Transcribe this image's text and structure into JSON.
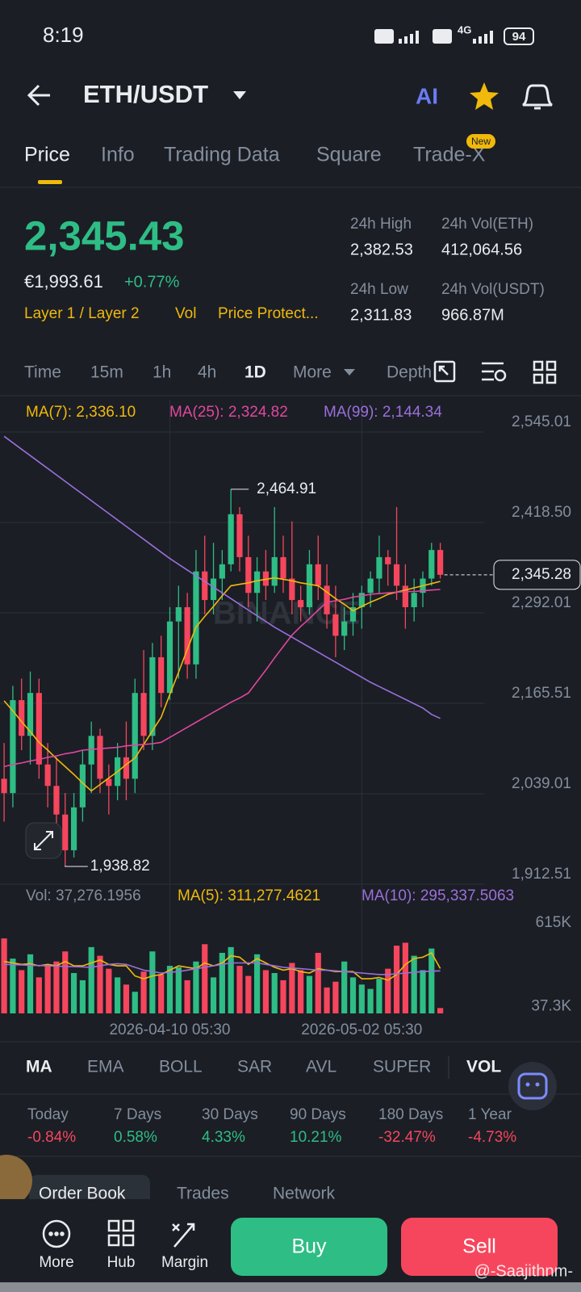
{
  "status_bar": {
    "time": "8:19",
    "network": "4G",
    "battery": "94"
  },
  "header": {
    "pair": "ETH/USDT",
    "ai": "AI"
  },
  "tabs": {
    "items": [
      "Price",
      "Info",
      "Trading Data",
      "Square",
      "Trade-X"
    ],
    "badge": "New"
  },
  "price": {
    "last": "2,345.43",
    "fiat": "€1,993.61",
    "change": "+0.77%",
    "tags": [
      "Layer 1 / Layer 2",
      "Vol",
      "Price Protect..."
    ]
  },
  "stats": [
    {
      "label": "24h High",
      "value": "2,382.53"
    },
    {
      "label": "24h Vol(ETH)",
      "value": "412,064.56"
    },
    {
      "label": "24h Low",
      "value": "2,311.83"
    },
    {
      "label": "24h Vol(USDT)",
      "value": "966.87M"
    }
  ],
  "intervals": [
    "Time",
    "15m",
    "1h",
    "4h",
    "1D",
    "More",
    "Depth"
  ],
  "chart_data": {
    "type": "candlestick",
    "categories": [
      null,
      null,
      null,
      null,
      null,
      null,
      null,
      null,
      null,
      null,
      null,
      null,
      null,
      null,
      null,
      null,
      null,
      null,
      null,
      "2026-04-10 05:30",
      null,
      null,
      null,
      null,
      null,
      null,
      null,
      null,
      null,
      null,
      null,
      null,
      null,
      null,
      null,
      null,
      null,
      null,
      null,
      null,
      null,
      "2026-05-02 05:30",
      null,
      null,
      null,
      null,
      null,
      null,
      null,
      null,
      null
    ],
    "open": [
      2060,
      2040,
      2170,
      2120,
      2180,
      2080,
      2050,
      2010,
      1960,
      2020,
      2080,
      2120,
      2060,
      2050,
      2090,
      2060,
      2180,
      2120,
      2230,
      2180,
      2280,
      2300,
      2220,
      2350,
      2310,
      2340,
      2360,
      2430,
      2370,
      2320,
      2350,
      2330,
      2370,
      2340,
      2310,
      2300,
      2360,
      2330,
      2290,
      2260,
      2280,
      2300,
      2320,
      2340,
      2370,
      2360,
      2330,
      2300,
      2320,
      2340,
      2380
    ],
    "high": [
      2110,
      2190,
      2200,
      2210,
      2200,
      2110,
      2090,
      2040,
      2040,
      2100,
      2140,
      2130,
      2080,
      2110,
      2140,
      2200,
      2240,
      2250,
      2260,
      2300,
      2330,
      2320,
      2380,
      2400,
      2390,
      2380,
      2464.91,
      2440,
      2400,
      2370,
      2380,
      2440,
      2400,
      2420,
      2330,
      2380,
      2400,
      2360,
      2330,
      2300,
      2320,
      2330,
      2350,
      2400,
      2380,
      2440,
      2360,
      2340,
      2350,
      2390,
      2390
    ],
    "low": [
      2000,
      2020,
      2100,
      2080,
      2060,
      2020,
      1990,
      1938.82,
      1950,
      2000,
      2040,
      2040,
      2010,
      2030,
      2030,
      2040,
      2100,
      2100,
      2160,
      2170,
      2200,
      2200,
      2200,
      2290,
      2290,
      2310,
      2350,
      2350,
      2300,
      2280,
      2310,
      2320,
      2320,
      2290,
      2280,
      2290,
      2310,
      2270,
      2230,
      2240,
      2260,
      2270,
      2300,
      2320,
      2330,
      2310,
      2270,
      2280,
      2300,
      2330,
      2340
    ],
    "close": [
      2040,
      2170,
      2120,
      2180,
      2080,
      2050,
      2010,
      1960,
      2020,
      2080,
      2120,
      2060,
      2050,
      2090,
      2060,
      2180,
      2120,
      2230,
      2180,
      2280,
      2300,
      2220,
      2350,
      2310,
      2340,
      2360,
      2430,
      2370,
      2320,
      2350,
      2330,
      2370,
      2340,
      2310,
      2300,
      2360,
      2330,
      2290,
      2260,
      2280,
      2300,
      2320,
      2340,
      2370,
      2360,
      2330,
      2300,
      2320,
      2340,
      2380,
      2345.28
    ],
    "up_color": "#2ebd85",
    "down_color": "#f6465d",
    "ylim": [
      1912.51,
      2590.2
    ],
    "yticks": [
      {
        "value": 2545.01,
        "label": "2,545.01"
      },
      {
        "value": 2418.5,
        "label": "2,418.50"
      },
      {
        "value": 2292.01,
        "label": "2,292.01"
      },
      {
        "value": 2165.51,
        "label": "2,165.51"
      },
      {
        "value": 2039.01,
        "label": "2,039.01"
      },
      {
        "value": 1912.51,
        "label": "1,912.51"
      }
    ],
    "grid": true,
    "series": [
      {
        "name": "MA(7): 2,336.10",
        "color": "#f0b90b",
        "values": [
          2169,
          2155,
          2140,
          2126,
          2111,
          2100,
          2088,
          2077,
          2066,
          2054,
          2043,
          2052,
          2061,
          2070,
          2080,
          2089,
          2108,
          2127,
          2146,
          2178,
          2209,
          2241,
          2272,
          2287,
          2301,
          2316,
          2330,
          2332,
          2334,
          2337,
          2339,
          2341,
          2339,
          2337,
          2334,
          2332,
          2330,
          2321,
          2312,
          2304,
          2295,
          2301,
          2307,
          2312,
          2318,
          2321,
          2324,
          2327,
          2330,
          2333,
          2336.1
        ]
      },
      {
        "name": "MA(25): 2,324.82",
        "color": "#e0479e",
        "values": [
          2077,
          2080,
          2082,
          2085,
          2087,
          2090,
          2092,
          2095,
          2097,
          2100,
          2101,
          2102,
          2103,
          2104,
          2106,
          2107,
          2108,
          2109,
          2111,
          2118,
          2125,
          2132,
          2139,
          2146,
          2153,
          2160,
          2167,
          2173,
          2180,
          2196,
          2212,
          2229,
          2245,
          2261,
          2273,
          2284,
          2296,
          2307,
          2309,
          2311,
          2314,
          2316,
          2318,
          2319,
          2320,
          2321,
          2322,
          2322,
          2323,
          2324,
          2324.82
        ]
      },
      {
        "name": "MA(99): 2,144.34",
        "color": "#9b6fdc",
        "values": [
          2539,
          2530,
          2521,
          2512,
          2503,
          2494,
          2485,
          2476,
          2467,
          2458,
          2449,
          2440,
          2431,
          2422,
          2413,
          2404,
          2395,
          2386,
          2377,
          2368,
          2360,
          2352,
          2344,
          2336,
          2328,
          2320,
          2312,
          2304,
          2296,
          2288,
          2280,
          2272,
          2265,
          2258,
          2251,
          2244,
          2237,
          2230,
          2223,
          2216,
          2209,
          2202,
          2195,
          2189,
          2183,
          2177,
          2171,
          2165,
          2159,
          2150,
          2144.34
        ]
      }
    ],
    "high_label": "2,464.91",
    "low_label": "1,938.82",
    "last_price_label": "2,345.28",
    "watermark": "BINANCE",
    "volume": {
      "label": "Vol: 37,276.1956",
      "values": [
        520000,
        380000,
        300000,
        410000,
        250000,
        330000,
        360000,
        430000,
        280000,
        230000,
        460000,
        400000,
        310000,
        250000,
        200000,
        150000,
        290000,
        430000,
        270000,
        330000,
        320000,
        230000,
        360000,
        480000,
        250000,
        420000,
        460000,
        330000,
        260000,
        410000,
        300000,
        280000,
        230000,
        350000,
        300000,
        260000,
        420000,
        180000,
        220000,
        360000,
        250000,
        200000,
        170000,
        240000,
        310000,
        470000,
        490000,
        400000,
        300000,
        450000,
        37276.1956
      ],
      "ylim": [
        0,
        700000
      ],
      "yticks": [
        {
          "value": 615000,
          "label": "615K"
        },
        {
          "value": 37300,
          "label": "37.3K"
        }
      ],
      "series": [
        {
          "name": "MA(5): 311,277.4621",
          "color": "#f0b90b",
          "values": [
            360000,
            350000,
            340000,
            345000,
            330000,
            340000,
            330000,
            360000,
            330000,
            330000,
            350000,
            370000,
            340000,
            330000,
            330000,
            260000,
            240000,
            260000,
            270000,
            300000,
            330000,
            320000,
            310000,
            350000,
            330000,
            350000,
            400000,
            390000,
            340000,
            380000,
            350000,
            320000,
            300000,
            310000,
            290000,
            280000,
            310000,
            300000,
            290000,
            290000,
            290000,
            240000,
            240000,
            250000,
            230000,
            270000,
            340000,
            380000,
            390000,
            420000,
            311277.4621
          ]
        },
        {
          "name": "MA(10): 295,337.5063",
          "color": "#9b6fdc",
          "values": [
            340000,
            338000,
            336000,
            334000,
            332000,
            330000,
            328000,
            326000,
            324000,
            322000,
            320000,
            330000,
            340000,
            345000,
            340000,
            320000,
            300000,
            290000,
            280000,
            285000,
            290000,
            300000,
            310000,
            320000,
            330000,
            340000,
            350000,
            350000,
            350000,
            350000,
            340000,
            330000,
            320000,
            315000,
            310000,
            305000,
            300000,
            300000,
            295000,
            290000,
            285000,
            280000,
            275000,
            270000,
            270000,
            275000,
            280000,
            285000,
            290000,
            293000,
            295337.5063
          ]
        }
      ]
    }
  },
  "indicators": [
    "MA",
    "EMA",
    "BOLL",
    "SAR",
    "AVL",
    "SUPER",
    "VOL"
  ],
  "performance": [
    {
      "label": "Today",
      "value": "-0.84%"
    },
    {
      "label": "7 Days",
      "value": "0.58%"
    },
    {
      "label": "30 Days",
      "value": "4.33%"
    },
    {
      "label": "90 Days",
      "value": "10.21%"
    },
    {
      "label": "180 Days",
      "value": "-32.47%"
    },
    {
      "label": "1 Year",
      "value": "-4.73%"
    }
  ],
  "bottom_tabs": [
    "Order Book",
    "Trades",
    "Network"
  ],
  "nav": {
    "items": [
      "More",
      "Hub",
      "Margin"
    ],
    "buy": "Buy",
    "sell": "Sell"
  },
  "watermark": "@-Saajithnm-"
}
